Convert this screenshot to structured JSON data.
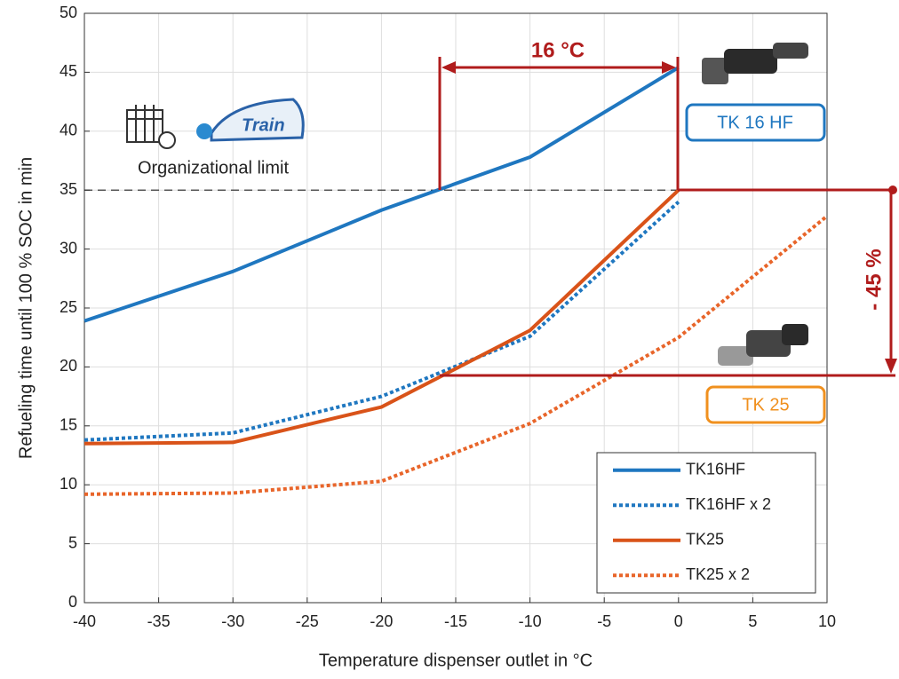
{
  "chart_data": {
    "type": "line",
    "xlabel": "Temperature dispenser outlet in °C",
    "ylabel": "Refueling time until 100 % SOC in min",
    "xlim": [
      -40,
      10
    ],
    "ylim": [
      0,
      50
    ],
    "xticks": [
      -40,
      -35,
      -30,
      -25,
      -20,
      -15,
      -10,
      -5,
      0,
      5,
      10
    ],
    "yticks": [
      0,
      5,
      10,
      15,
      20,
      25,
      30,
      35,
      40,
      45,
      50
    ],
    "grid": true,
    "legend": "lower right",
    "reference_line": 35,
    "series": [
      {
        "name": "TK16HF",
        "color": "#1f77c0",
        "linestyle": "solid",
        "x": [
          -40,
          -30,
          -20,
          -10,
          0
        ],
        "values": [
          23.9,
          28.1,
          33.3,
          37.8,
          45.4
        ]
      },
      {
        "name": "TK16HF x 2",
        "color": "#1f77c0",
        "linestyle": "dotted",
        "x": [
          -40,
          -30,
          -20,
          -10,
          0
        ],
        "values": [
          13.8,
          14.4,
          17.5,
          22.6,
          34.0
        ]
      },
      {
        "name": "TK25",
        "color": "#d95319",
        "linestyle": "solid",
        "x": [
          -40,
          -30,
          -20,
          -10,
          0
        ],
        "values": [
          13.5,
          13.6,
          16.6,
          23.1,
          35.0
        ]
      },
      {
        "name": "TK25 x 2",
        "color": "#e8652a",
        "linestyle": "dotted",
        "x": [
          -40,
          -30,
          -20,
          -10,
          0,
          10
        ],
        "values": [
          9.2,
          9.3,
          10.3,
          15.2,
          22.5,
          32.8
        ]
      }
    ],
    "annotations": {
      "delta_t": "16 °C",
      "reduction": "- 45 %",
      "tk16": "TK 16 HF",
      "tk25": "TK 25",
      "limit": "Organizational limit"
    }
  }
}
